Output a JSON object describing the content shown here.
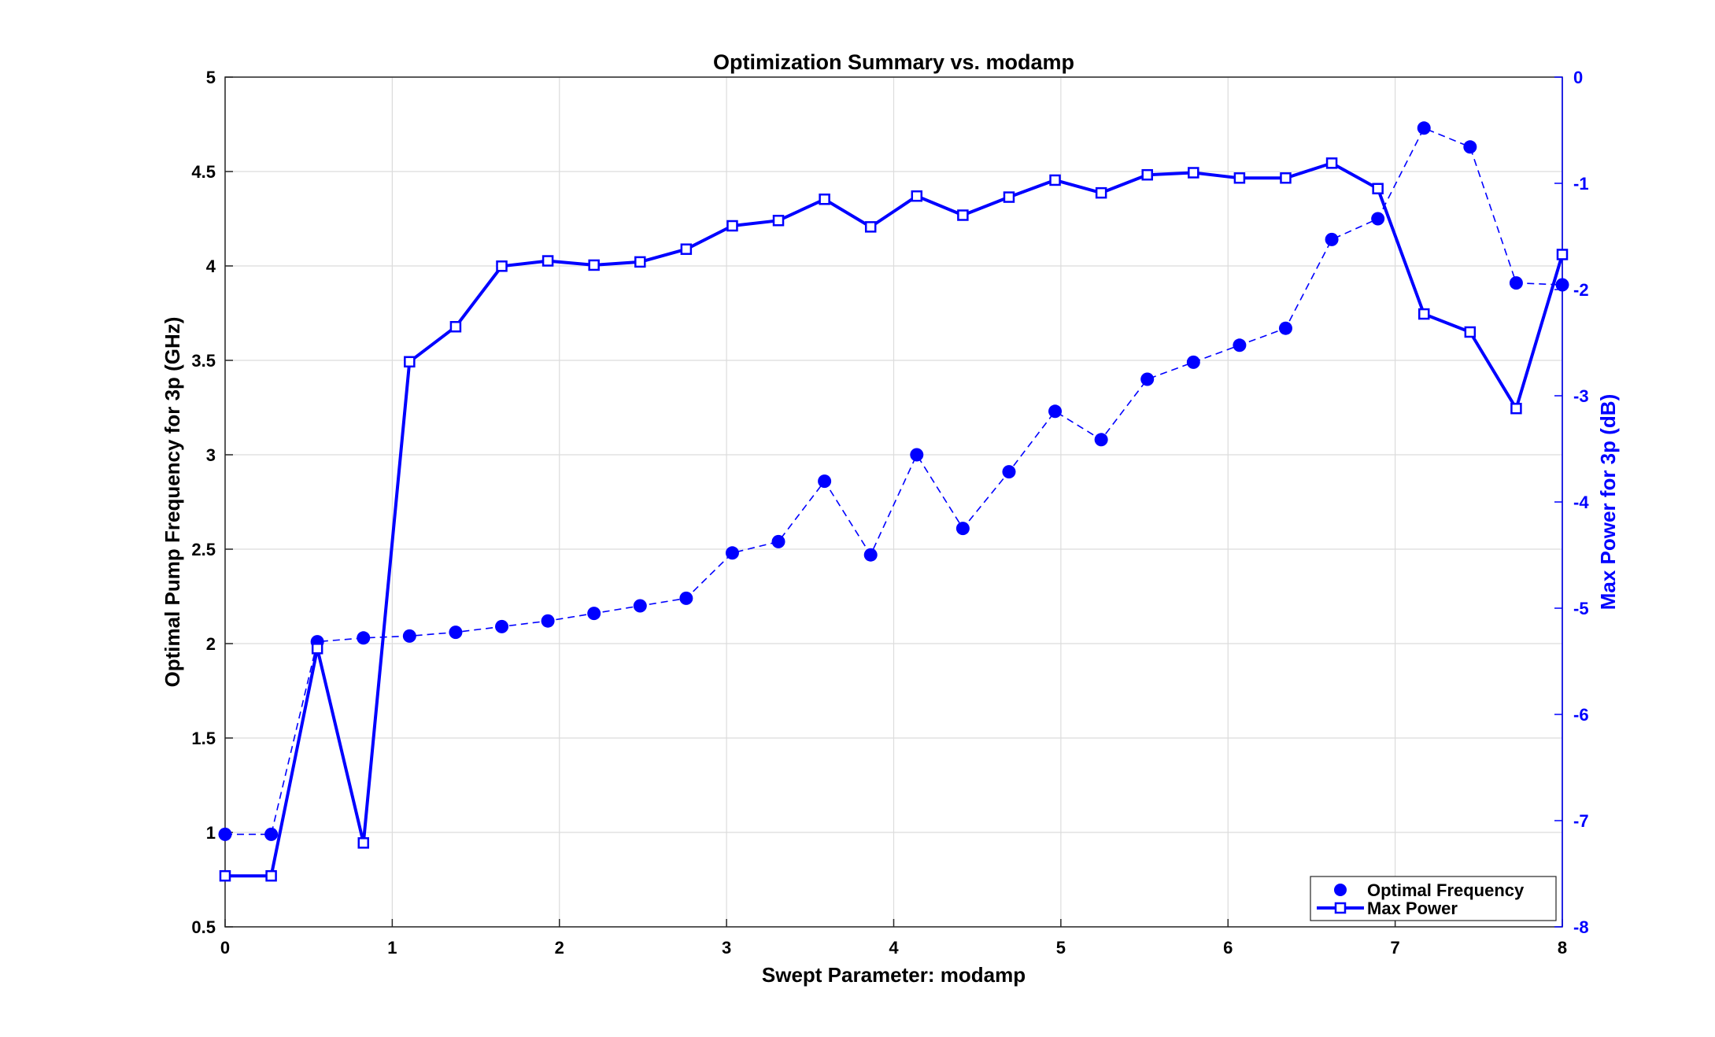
{
  "chart_data": {
    "type": "line",
    "title": "Optimization Summary vs. modamp",
    "xlabel": "Swept Parameter: modamp",
    "ylabel_left": "Optimal Pump Frequency for 3p (GHz)",
    "ylabel_right": "Max Power for 3p (dB)",
    "xlim": [
      0,
      8
    ],
    "ylim_left": [
      0.5,
      5
    ],
    "ylim_right": [
      -8,
      0
    ],
    "x_ticks": [
      0,
      1,
      2,
      3,
      4,
      5,
      6,
      7,
      8
    ],
    "y_left_ticks": [
      0.5,
      1,
      1.5,
      2,
      2.5,
      3,
      3.5,
      4,
      4.5,
      5
    ],
    "y_right_ticks": [
      -8,
      -7,
      -6,
      -5,
      -4,
      -3,
      -2,
      -1,
      0
    ],
    "grid": true,
    "legend_position": "bottom-right",
    "colors": {
      "series": "#0000ff",
      "axis_right": "#0000ff",
      "axis_left": "#000000",
      "grid": "#dcdcdc"
    },
    "x": [
      0,
      0.2759,
      0.5517,
      0.8276,
      1.1034,
      1.3793,
      1.6552,
      1.931,
      2.2069,
      2.4828,
      2.7586,
      3.0345,
      3.3103,
      3.5862,
      3.8621,
      4.1379,
      4.4138,
      4.6897,
      4.9655,
      5.2414,
      5.5172,
      5.7931,
      6.069,
      6.3448,
      6.6207,
      6.8966,
      7.1724,
      7.4483,
      7.7241,
      8.0
    ],
    "series": [
      {
        "name": "Optimal Frequency",
        "axis": "left",
        "style": "dashed-dots",
        "values": [
          0.99,
          0.99,
          2.01,
          2.03,
          2.04,
          2.06,
          2.09,
          2.12,
          2.16,
          2.2,
          2.24,
          2.48,
          2.54,
          2.86,
          2.47,
          3.0,
          2.61,
          2.91,
          3.23,
          3.08,
          3.4,
          3.49,
          3.58,
          3.67,
          4.14,
          4.25,
          4.73,
          4.63,
          3.91,
          3.9
        ]
      },
      {
        "name": "Max Power",
        "axis": "right",
        "style": "solid-squares",
        "values": [
          -7.52,
          -7.52,
          -5.38,
          -7.21,
          -2.68,
          -2.35,
          -1.78,
          -1.73,
          -1.77,
          -1.74,
          -1.62,
          -1.4,
          -1.35,
          -1.15,
          -1.41,
          -1.12,
          -1.3,
          -1.13,
          -0.97,
          -1.09,
          -0.92,
          -0.9,
          -0.95,
          -0.95,
          -0.81,
          -1.05,
          -2.23,
          -2.4,
          -3.12,
          -1.67
        ]
      }
    ]
  }
}
